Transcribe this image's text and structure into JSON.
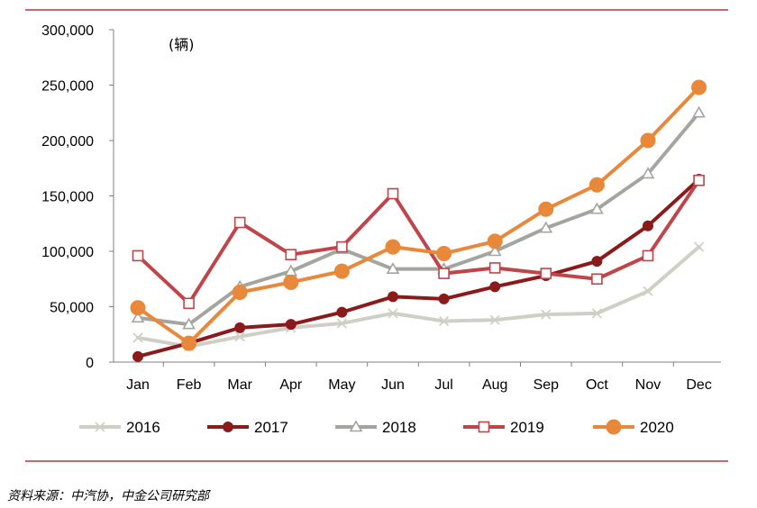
{
  "chart_data": {
    "type": "line",
    "unit_label": "(辆)",
    "categories": [
      "Jan",
      "Feb",
      "Mar",
      "Apr",
      "May",
      "Jun",
      "Jul",
      "Aug",
      "Sep",
      "Oct",
      "Nov",
      "Dec"
    ],
    "y_ticks": [
      "0",
      "50,000",
      "100,000",
      "150,000",
      "200,000",
      "250,000",
      "300,000"
    ],
    "ylim": [
      0,
      300000
    ],
    "grid": false,
    "legend_position": "bottom",
    "series": [
      {
        "name": "2016",
        "color": "#d0cfc6",
        "marker": "x",
        "values": [
          22000,
          14000,
          23000,
          31000,
          35000,
          44000,
          37000,
          38000,
          43000,
          44000,
          64000,
          104000
        ]
      },
      {
        "name": "2017",
        "color": "#8b1a1a",
        "marker": "filled-circle",
        "values": [
          5000,
          17000,
          31000,
          34000,
          45000,
          59000,
          57000,
          68000,
          78000,
          91000,
          123000,
          165000
        ]
      },
      {
        "name": "2018",
        "color": "#a5a5a0",
        "marker": "triangle",
        "values": [
          40000,
          34000,
          68000,
          82000,
          102000,
          84000,
          84000,
          100000,
          121000,
          138000,
          170000,
          225000
        ]
      },
      {
        "name": "2019",
        "color": "#c0454a",
        "marker": "square",
        "values": [
          96000,
          53000,
          126000,
          97000,
          104000,
          152000,
          80000,
          85000,
          80000,
          75000,
          96000,
          164000
        ]
      },
      {
        "name": "2020",
        "color": "#e8883a",
        "marker": "large-circle",
        "values": [
          49000,
          17000,
          63000,
          72000,
          82000,
          104000,
          98000,
          109000,
          138000,
          160000,
          200000,
          248000
        ]
      }
    ]
  },
  "source": "资料来源：中汽协，中金公司研究部",
  "rule_color": "#b5373a"
}
